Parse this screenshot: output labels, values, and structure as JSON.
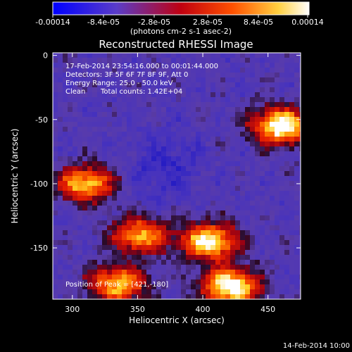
{
  "chart_data": {
    "type": "heatmap",
    "title": "Reconstructed RHESSI Image",
    "xlabel": "Heliocentric X (arcsec)",
    "ylabel": "Heliocentric Y (arcsec)",
    "xlim": [
      285,
      475
    ],
    "ylim": [
      -190,
      2
    ],
    "xticks": [
      300,
      350,
      400,
      450
    ],
    "yticks": [
      0,
      -50,
      -100,
      -150
    ],
    "colorbar": {
      "range": [
        -0.00014,
        0.00014
      ],
      "tick_labels": [
        "-0.00014",
        "-8.4e-05",
        "-2.8e-05",
        "2.8e-05",
        "8.4e-05",
        "0.00014"
      ],
      "units": "(photons cm-2 s-1 asec-2)",
      "colormap": [
        "#0000ff",
        "#6040c0",
        "#ff0000",
        "#ff8000",
        "#ffff80",
        "#ffffff"
      ]
    },
    "annotations": {
      "time_range": "17-Feb-2014 23:54:16.000 to 00:01:44.000",
      "detectors": "Detectors: 3F 5F 6F 7F 8F 9F, Att 0",
      "energy": "Energy Range: 25.0 - 50.0 keV",
      "algorithm": "Clean",
      "counts": "Total counts: 1.42E+04",
      "peak": "Position of Peak = [421,-180]"
    },
    "bright_sources": [
      {
        "x": 460,
        "y": -55,
        "intensity": 1.0
      },
      {
        "x": 310,
        "y": -100,
        "intensity": 0.8
      },
      {
        "x": 405,
        "y": -145,
        "intensity": 0.95
      },
      {
        "x": 352,
        "y": -140,
        "intensity": 0.75
      },
      {
        "x": 335,
        "y": -178,
        "intensity": 0.8
      },
      {
        "x": 421,
        "y": -180,
        "intensity": 1.0
      }
    ],
    "grid": false
  },
  "footer": {
    "date": "14-Feb-2014 10:00"
  }
}
